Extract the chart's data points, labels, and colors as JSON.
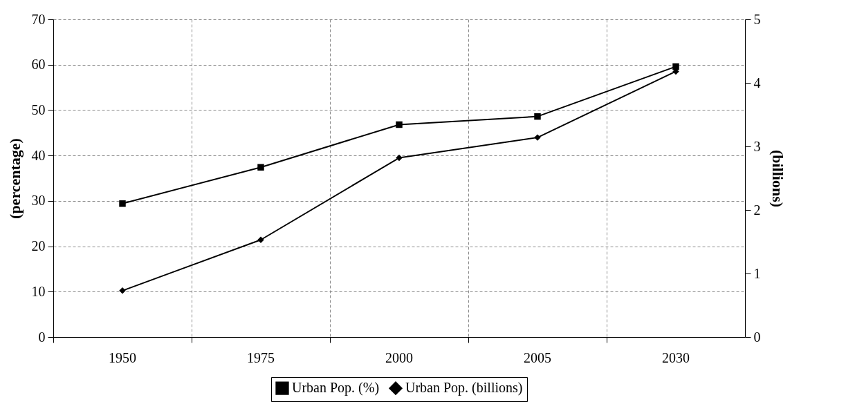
{
  "chart_data": {
    "type": "line",
    "ylabel": "(percentage)",
    "y2label": "(billions)",
    "categories": [
      "1950",
      "1975",
      "2000",
      "2005",
      "2030"
    ],
    "series": [
      {
        "name": "Urban Pop. (%)",
        "color": "#000000",
        "marker": "square",
        "values": [
          29.4,
          37.4,
          46.8,
          48.6,
          59.6
        ]
      },
      {
        "name": "Urban Pop. (billions)",
        "color": "#000000",
        "marker": "diamond",
        "axis": "y2",
        "values": [
          0.73,
          1.53,
          2.82,
          3.14,
          4.18
        ]
      }
    ],
    "ylim": [
      0,
      70
    ],
    "yticks": [
      0,
      10,
      20,
      30,
      40,
      50,
      60,
      70
    ],
    "y2lim": [
      0,
      5
    ],
    "y2ticks": [
      0,
      1,
      2,
      3,
      4,
      5
    ],
    "grid": true,
    "legend": "bottom",
    "line_style": "solid"
  }
}
